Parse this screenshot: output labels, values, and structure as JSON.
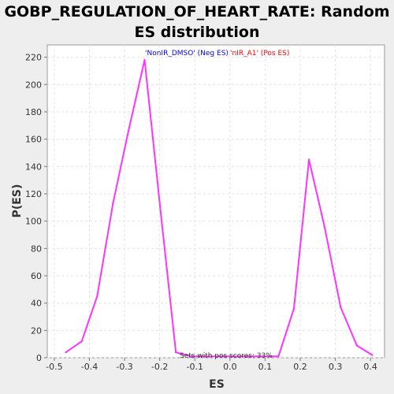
{
  "title_line1": "GOBP_REGULATION_OF_HEART_RATE: Random",
  "title_line2": "ES distribution",
  "chart_data": {
    "type": "line",
    "title": "GOBP_REGULATION_OF_HEART_RATE: Random ES distribution",
    "xlabel": "ES",
    "ylabel": "P(ES)",
    "xlim": [
      -0.52,
      0.44
    ],
    "ylim": [
      0,
      229
    ],
    "xticks": [
      -0.5,
      -0.4,
      -0.3,
      -0.2,
      -0.1,
      0.0,
      0.1,
      0.2,
      0.3,
      0.4
    ],
    "xtick_labels": [
      "-0.5",
      "-0.4",
      "-0.3",
      "-0.2",
      "-0.1",
      "0.0",
      "0.1",
      "0.2",
      "0.3",
      "0.4"
    ],
    "yticks": [
      0,
      20,
      40,
      60,
      80,
      100,
      120,
      140,
      160,
      180,
      200,
      220
    ],
    "grid": true,
    "series": [
      {
        "color": "#ff33ff",
        "x": [
          -0.467,
          -0.422,
          -0.378,
          -0.333,
          -0.289,
          -0.243,
          -0.199,
          -0.154,
          -0.109,
          0.138,
          0.182,
          0.225,
          0.269,
          0.315,
          0.361,
          0.405
        ],
        "y": [
          4,
          12,
          45,
          113,
          166,
          218,
          111,
          4,
          1,
          1,
          36,
          145,
          96,
          37,
          9,
          2
        ]
      }
    ],
    "annotations": {
      "neg_label": "'NonIR_DMSO' (Neg ES)",
      "pos_label": "'nIR_A1' (Pos ES)",
      "neg_color": "#0000ff",
      "pos_color": "#ff0000",
      "bottom_note": "Sets with pos scores: 33%"
    }
  }
}
